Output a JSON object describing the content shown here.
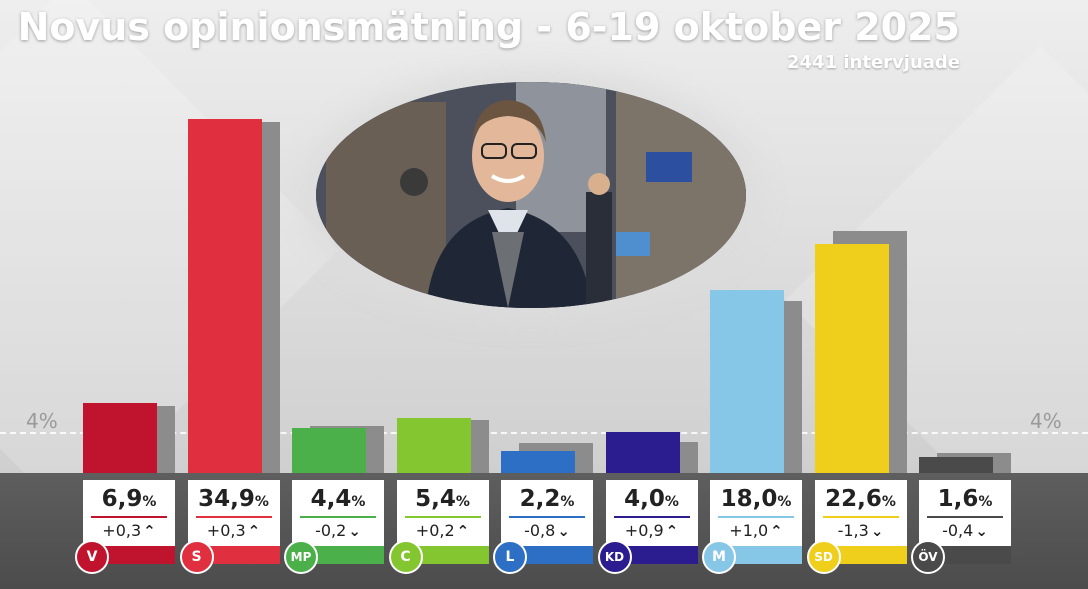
{
  "title": "Novus opinionsmätning - 6-19 oktober 2025",
  "subtitle": "2441 intervjuade",
  "threshold_label": "4%",
  "chart_data": {
    "type": "bar",
    "title": "Novus opinionsmätning - 6-19 oktober 2025",
    "subtitle": "2441 intervjuade",
    "categories": [
      "V",
      "S",
      "MP",
      "C",
      "L",
      "KD",
      "M",
      "SD",
      "ÖV"
    ],
    "series": [
      {
        "values": [
          6.9,
          34.9,
          4.4,
          5.4,
          2.2,
          4.0,
          18.0,
          22.6,
          1.6
        ]
      },
      {
        "values": [
          6.6,
          34.6,
          4.6,
          5.2,
          3.0,
          3.1,
          17.0,
          23.9,
          2.0
        ]
      }
    ],
    "values_text": [
      "6,9",
      "34,9",
      "4,4",
      "5,4",
      "2,2",
      "4,0",
      "18,0",
      "22,6",
      "1,6"
    ],
    "change_text": [
      "+0,3",
      "+0,3",
      "-0,2",
      "+0,2",
      "-0,8",
      "+0,9",
      "+1,0",
      "-1,3",
      "-0,4"
    ],
    "change_direction": [
      "up",
      "up",
      "down",
      "up",
      "down",
      "up",
      "up",
      "down",
      "down"
    ],
    "percent_sign": "%",
    "threshold": 4,
    "colors": [
      "#c0142e",
      "#e03040",
      "#4cb04a",
      "#84c630",
      "#2c6fc4",
      "#2b1c8f",
      "#86c7e8",
      "#f0cf1c",
      "#4a4a4a"
    ],
    "shadow_color": "#8c8c8c",
    "ylim": [
      0,
      36
    ],
    "xlabel": "",
    "ylabel": "",
    "grid": false,
    "legend": "none"
  }
}
